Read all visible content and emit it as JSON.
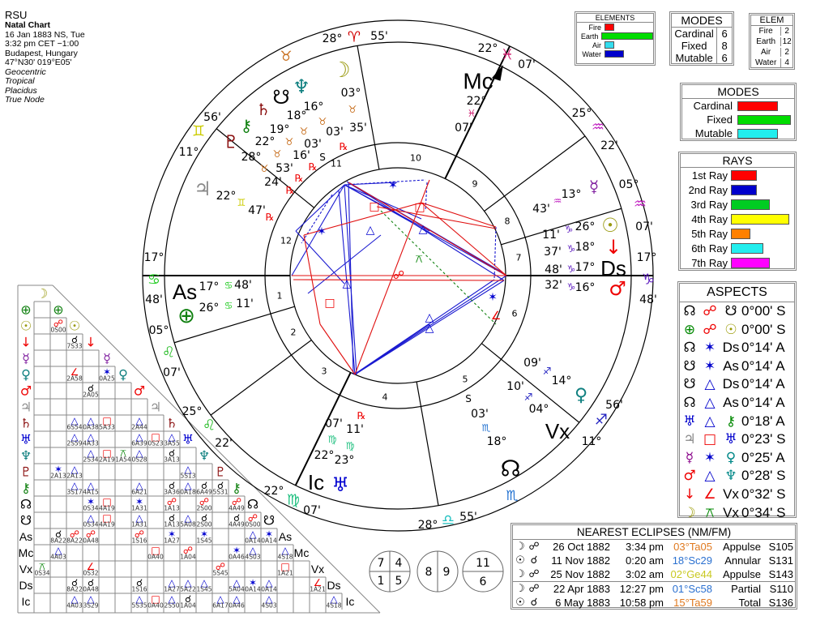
{
  "header": {
    "name": "RSU",
    "chart_type": "Natal Chart",
    "date": "16 Jan 1883 NS, Tue",
    "time": "3:32 pm  CET −1:00",
    "place": "Budapest, Hungary",
    "coords": "47°N30' 019°E05'",
    "settings": [
      "Geocentric",
      "Tropical",
      "Placidus",
      "True Node"
    ]
  },
  "elements_box": {
    "title": "ELEMENTS",
    "rows": [
      {
        "label": "Fire",
        "value": 2,
        "color": "#ff0000"
      },
      {
        "label": "Earth",
        "value": 12,
        "color": "#00dd00"
      },
      {
        "label": "Air",
        "value": 2,
        "color": "#33ddee"
      },
      {
        "label": "Water",
        "value": 4,
        "color": "#0000cc"
      }
    ]
  },
  "modes_table": {
    "title": "MODES",
    "rows": [
      {
        "label": "Cardinal",
        "value": "6"
      },
      {
        "label": "Fixed",
        "value": "8"
      },
      {
        "label": "Mutable",
        "value": "6"
      }
    ]
  },
  "elem_table": {
    "title": "ELEM",
    "rows": [
      {
        "label": "Fire",
        "value": "2"
      },
      {
        "label": "Earth",
        "value": "12"
      },
      {
        "label": "Air",
        "value": "2"
      },
      {
        "label": "Water",
        "value": "4"
      }
    ]
  },
  "modes_bars": {
    "title": "MODES",
    "rows": [
      {
        "label": "Cardinal",
        "value": 6,
        "color": "#ff0000"
      },
      {
        "label": "Fixed",
        "value": 8,
        "color": "#00dd00"
      },
      {
        "label": "Mutable",
        "value": 6,
        "color": "#22eeee"
      }
    ]
  },
  "rays": {
    "title": "RAYS",
    "rows": [
      {
        "label": "1st Ray",
        "value": 4,
        "color": "#ff0000"
      },
      {
        "label": "2nd Ray",
        "value": 4,
        "color": "#0000cc"
      },
      {
        "label": "3rd Ray",
        "value": 6,
        "color": "#00cc22"
      },
      {
        "label": "4th Ray",
        "value": 9,
        "color": "#ffff00"
      },
      {
        "label": "5th Ray",
        "value": 3,
        "color": "#ff8000"
      },
      {
        "label": "6th Ray",
        "value": 5,
        "color": "#22eeee"
      },
      {
        "label": "7th Ray",
        "value": 6,
        "color": "#ff00ff"
      }
    ]
  },
  "aspects": {
    "title": "ASPECTS",
    "rows": [
      {
        "p1": "☊",
        "c1": "#000",
        "a": "☍",
        "ca": "#e00",
        "p2": "☋",
        "c2": "#000",
        "orb": "0°00' S"
      },
      {
        "p1": "⊕",
        "c1": "#080",
        "a": "☍",
        "ca": "#e00",
        "p2": "☉",
        "c2": "#990",
        "orb": "0°00' S"
      },
      {
        "p1": "☊",
        "c1": "#000",
        "a": "✶",
        "ca": "#00c",
        "p2": "Ds",
        "c2": "#000",
        "orb": "0°14' A"
      },
      {
        "p1": "☋",
        "c1": "#000",
        "a": "✶",
        "ca": "#00c",
        "p2": "As",
        "c2": "#000",
        "orb": "0°14' A"
      },
      {
        "p1": "☋",
        "c1": "#000",
        "a": "△",
        "ca": "#00c",
        "p2": "Ds",
        "c2": "#000",
        "orb": "0°14' A"
      },
      {
        "p1": "☊",
        "c1": "#000",
        "a": "△",
        "ca": "#00c",
        "p2": "As",
        "c2": "#000",
        "orb": "0°14' A"
      },
      {
        "p1": "♅",
        "c1": "#00c",
        "a": "△",
        "ca": "#00c",
        "p2": "⚷",
        "c2": "#080",
        "orb": "0°18' A"
      },
      {
        "p1": "♃",
        "c1": "#888",
        "a": "□",
        "ca": "#e00",
        "p2": "♅",
        "c2": "#00c",
        "orb": "0°23' S"
      },
      {
        "p1": "☿",
        "c1": "#808",
        "a": "✶",
        "ca": "#00c",
        "p2": "♀",
        "c2": "#088",
        "orb": "0°25' A"
      },
      {
        "p1": "♂",
        "c1": "#e00",
        "a": "△",
        "ca": "#00c",
        "p2": "♆",
        "c2": "#088",
        "orb": "0°28' S"
      },
      {
        "p1": "↓",
        "c1": "#e00",
        "a": "∠",
        "ca": "#e00",
        "p2": "Vx",
        "c2": "#000",
        "orb": "0°32' S"
      },
      {
        "p1": "☽",
        "c1": "#990",
        "a": "⚻",
        "ca": "#080",
        "p2": "Vx",
        "c2": "#000",
        "orb": "0°34' S"
      }
    ]
  },
  "eclipses": {
    "title": "NEAREST ECLIPSES (NM/FM)",
    "rows": [
      {
        "body": "☽",
        "node": "☍",
        "date": "26 Oct 1882",
        "time": "3:34 pm",
        "pos": "03°Ta05",
        "pos_color": "#e07a20",
        "kind": "Appulse",
        "saros": "S105"
      },
      {
        "body": "☉",
        "node": "☌",
        "date": "11 Nov 1882",
        "time": "0:20 am",
        "pos": "18°Sc29",
        "pos_color": "#2a70d0",
        "kind": "Annular",
        "saros": "S131"
      },
      {
        "body": "☽",
        "node": "☍",
        "date": "25 Nov 1882",
        "time": "3:02 am",
        "pos": "02°Ge44",
        "pos_color": "#c8c820",
        "kind": "Appulse",
        "saros": "S143"
      },
      {
        "body": "☽",
        "node": "☍",
        "date": "22 Apr 1883",
        "time": "12:27 pm",
        "pos": "01°Sc58",
        "pos_color": "#2a70d0",
        "kind": "Partial",
        "saros": "S110"
      },
      {
        "body": "☉",
        "node": "☌",
        "date": "6 May 1883",
        "time": "10:58 pm",
        "pos": "15°Ta59",
        "pos_color": "#e07a20",
        "kind": "Total",
        "saros": "S136"
      }
    ]
  },
  "house_circles": [
    [
      "7",
      "4",
      "1",
      "5"
    ],
    [
      "8",
      "9"
    ],
    [
      "11",
      "6"
    ]
  ],
  "wheel": {
    "house_numbers": [
      "1",
      "2",
      "3",
      "4",
      "5",
      "6",
      "7",
      "8",
      "9",
      "10",
      "11",
      "12"
    ],
    "cusps": [
      {
        "house": "11",
        "deg": "28°",
        "sign": "♈",
        "min": "55'",
        "color": "#d00000"
      },
      {
        "house": "10",
        "deg": "22°",
        "sign": "♓",
        "min": "07'",
        "color": "#d02070"
      },
      {
        "house": "9",
        "deg": "25°",
        "sign": "♒",
        "min": "22'",
        "color": "#c020c0"
      },
      {
        "house": "8",
        "deg": "05°",
        "sign": "♒",
        "min": "07'",
        "color": "#c020c0"
      },
      {
        "house": "7",
        "deg": "17°",
        "sign": "♑",
        "min": "48'",
        "color": "#6020c0"
      },
      {
        "house": "6",
        "deg": "11°",
        "sign": "♐",
        "min": "56'",
        "color": "#2020c0"
      },
      {
        "house": "5",
        "deg": "28°",
        "sign": "♎",
        "min": "55'",
        "color": "#20c0c0"
      },
      {
        "house": "4",
        "deg": "22°",
        "sign": "♍",
        "min": "07'",
        "color": "#20c080"
      },
      {
        "house": "3",
        "deg": "25°",
        "sign": "♌",
        "min": "22'",
        "color": "#22bb22"
      },
      {
        "house": "2",
        "deg": "05°",
        "sign": "♌",
        "min": "07'",
        "color": "#22bb22"
      },
      {
        "house": "1",
        "deg": "17°",
        "sign": "♋",
        "min": "48'",
        "color": "#22cc22"
      },
      {
        "house": "12",
        "deg": "11°",
        "sign": "♊",
        "min": "56'",
        "color": "#cccc00"
      }
    ],
    "intercepted": [
      {
        "sign": "♉",
        "color": "#c87020"
      },
      {
        "sign": "♏",
        "color": "#2070d0"
      }
    ],
    "points": [
      {
        "id": "moon",
        "glyph": "☽",
        "color": "#9a9a10",
        "deg": "03°",
        "sign": "♉",
        "sc": "#c87020",
        "min": "35'",
        "flag": ""
      },
      {
        "id": "neptune",
        "glyph": "♆",
        "color": "#108080",
        "deg": "16°",
        "sign": "♉",
        "sc": "#c87020",
        "min": "03'",
        "flag": "℞"
      },
      {
        "id": "south-node",
        "glyph": "☋",
        "color": "#000",
        "deg": "18°",
        "sign": "♉",
        "sc": "#c87020",
        "min": "03'",
        "flag": "S"
      },
      {
        "id": "saturn",
        "glyph": "♄",
        "color": "#8b1010",
        "deg": "19°",
        "sign": "♉",
        "sc": "#c87020",
        "min": "16'",
        "flag": "℞"
      },
      {
        "id": "chiron",
        "glyph": "⚷",
        "color": "#108010",
        "deg": "22°",
        "sign": "♉",
        "sc": "#c87020",
        "min": "53'",
        "flag": "℞"
      },
      {
        "id": "pluto",
        "glyph": "♇",
        "color": "#8b1010",
        "deg": "28°",
        "sign": "♉",
        "sc": "#c87020",
        "min": "24'",
        "flag": "℞"
      },
      {
        "id": "jupiter",
        "glyph": "♃",
        "color": "#888",
        "deg": "22°",
        "sign": "♊",
        "sc": "#cccc00",
        "min": "47'",
        "flag": "℞"
      },
      {
        "id": "mercury",
        "glyph": "☿",
        "color": "#8020a0",
        "deg": "13°",
        "sign": "♒",
        "sc": "#c020c0",
        "min": "43'",
        "flag": ""
      },
      {
        "id": "sun",
        "glyph": "☉",
        "color": "#9a9a10",
        "deg": "26°",
        "sign": "♑",
        "sc": "#6020c0",
        "min": "11'",
        "flag": ""
      },
      {
        "id": "vulcan",
        "glyph": "↓",
        "color": "#e00",
        "deg": "18°",
        "sign": "♑",
        "sc": "#6020c0",
        "min": "37'",
        "flag": ""
      },
      {
        "id": "descendant",
        "glyph": "Ds",
        "color": "#000",
        "deg": "17°",
        "sign": "♑",
        "sc": "#6020c0",
        "min": "48'",
        "flag": ""
      },
      {
        "id": "mars",
        "glyph": "♂",
        "color": "#e00",
        "deg": "16°",
        "sign": "♑",
        "sc": "#6020c0",
        "min": "32'",
        "flag": ""
      },
      {
        "id": "venus",
        "glyph": "♀",
        "color": "#108080",
        "deg": "14°",
        "sign": "♐",
        "sc": "#2020c0",
        "min": "09'",
        "flag": ""
      },
      {
        "id": "vertex",
        "glyph": "Vx",
        "color": "#000",
        "deg": "04°",
        "sign": "♐",
        "sc": "#2020c0",
        "min": "10'",
        "flag": ""
      },
      {
        "id": "north-node",
        "glyph": "☊",
        "color": "#000",
        "deg": "18°",
        "sign": "♏",
        "sc": "#2070d0",
        "min": "03'",
        "flag": "S"
      },
      {
        "id": "uranus",
        "glyph": "♅",
        "color": "#0000d0",
        "deg": "23°",
        "sign": "♍",
        "sc": "#20c080",
        "min": "11'",
        "flag": "℞"
      },
      {
        "id": "imum-coeli",
        "glyph": "Ic",
        "color": "#000",
        "deg": "22°",
        "sign": "♍",
        "sc": "#20c080",
        "min": "07'",
        "flag": ""
      },
      {
        "id": "earth",
        "glyph": "⊕",
        "color": "#108010",
        "deg": "26°",
        "sign": "♋",
        "sc": "#22cc22",
        "min": "11'",
        "flag": ""
      },
      {
        "id": "ascendant",
        "glyph": "As",
        "color": "#000",
        "deg": "17°",
        "sign": "♋",
        "sc": "#22cc22",
        "min": "48'",
        "flag": ""
      },
      {
        "id": "midheaven",
        "glyph": "Mc",
        "color": "#000",
        "deg": "22°",
        "sign": "♓",
        "sc": "#d02070",
        "min": "07'",
        "flag": ""
      }
    ]
  },
  "grid": {
    "top_label": {
      "glyph": "☽",
      "color": "#9a9a10"
    },
    "rows": [
      {
        "glyph": "⊕",
        "color": "#108010"
      },
      {
        "glyph": "☉",
        "color": "#9a9a10"
      },
      {
        "glyph": "↓",
        "color": "#e00"
      },
      {
        "glyph": "☿",
        "color": "#8020a0"
      },
      {
        "glyph": "♀",
        "color": "#108080"
      },
      {
        "glyph": "♂",
        "color": "#e00"
      },
      {
        "glyph": "♃",
        "color": "#888"
      },
      {
        "glyph": "♄",
        "color": "#8b1010"
      },
      {
        "glyph": "♅",
        "color": "#0000d0"
      },
      {
        "glyph": "♆",
        "color": "#108080"
      },
      {
        "glyph": "♇",
        "color": "#8b1010"
      },
      {
        "glyph": "⚷",
        "color": "#108010"
      },
      {
        "glyph": "☊",
        "color": "#000"
      },
      {
        "glyph": "☋",
        "color": "#000"
      },
      {
        "glyph": "As",
        "color": "#000"
      },
      {
        "glyph": "Mc",
        "color": "#000"
      },
      {
        "glyph": "Vx",
        "color": "#000"
      },
      {
        "glyph": "Ds",
        "color": "#000"
      },
      {
        "glyph": "Ic",
        "color": "#000"
      }
    ],
    "cells": [
      [
        1,
        1,
        "opp",
        "0S00"
      ],
      [
        2,
        2,
        "con",
        "7S33"
      ],
      [
        4,
        2,
        "ssq",
        "2A58"
      ],
      [
        4,
        4,
        "sex",
        "0A25"
      ],
      [
        5,
        3,
        "con",
        "2A05"
      ],
      [
        7,
        2,
        "tri",
        "6S54"
      ],
      [
        7,
        3,
        "tri",
        "0A38"
      ],
      [
        7,
        4,
        "sqr",
        "5A33"
      ],
      [
        7,
        6,
        "tri",
        "2A44"
      ],
      [
        8,
        2,
        "tri",
        "2S59"
      ],
      [
        8,
        3,
        "tri",
        "4A33"
      ],
      [
        8,
        6,
        "tri",
        "6A39"
      ],
      [
        8,
        7,
        "sqr",
        "0S23"
      ],
      [
        8,
        8,
        "tri",
        "3A55"
      ],
      [
        9,
        3,
        "tri",
        "2S34"
      ],
      [
        9,
        4,
        "sqr",
        "2A19"
      ],
      [
        9,
        5,
        "qcx",
        "1A54"
      ],
      [
        9,
        6,
        "tri",
        "0S28"
      ],
      [
        9,
        8,
        "con",
        "3A13"
      ],
      [
        10,
        1,
        "sex",
        "2A13"
      ],
      [
        10,
        2,
        "tri",
        "2A13"
      ],
      [
        10,
        9,
        "tri",
        "5S13"
      ],
      [
        11,
        2,
        "tri",
        "3S17"
      ],
      [
        11,
        3,
        "tri",
        "4A15"
      ],
      [
        11,
        6,
        "tri",
        "6A21"
      ],
      [
        11,
        8,
        "con",
        "3A36"
      ],
      [
        11,
        9,
        "tri",
        "0A18"
      ],
      [
        11,
        10,
        "con",
        "6A49"
      ],
      [
        11,
        11,
        "con",
        "5S31"
      ],
      [
        12,
        3,
        "sex",
        "0S34"
      ],
      [
        12,
        4,
        "sqr",
        "4A19"
      ],
      [
        12,
        6,
        "sex",
        "1A31"
      ],
      [
        12,
        8,
        "opp",
        "1A13"
      ],
      [
        12,
        10,
        "opp",
        "2S00"
      ],
      [
        12,
        12,
        "opp",
        "4A49"
      ],
      [
        13,
        3,
        "tri",
        "0S34"
      ],
      [
        13,
        4,
        "sqr",
        "4A19"
      ],
      [
        13,
        6,
        "tri",
        "1A31"
      ],
      [
        13,
        8,
        "con",
        "1A13"
      ],
      [
        13,
        9,
        "tri",
        "5A08"
      ],
      [
        13,
        10,
        "con",
        "2S00"
      ],
      [
        13,
        12,
        "con",
        "4A49"
      ],
      [
        13,
        13,
        "opp",
        "0S00"
      ],
      [
        14,
        1,
        "con",
        "8A22"
      ],
      [
        14,
        2,
        "opp",
        "8A22"
      ],
      [
        14,
        3,
        "opp",
        "0A48"
      ],
      [
        14,
        6,
        "opp",
        "1S16"
      ],
      [
        14,
        8,
        "sex",
        "1A27"
      ],
      [
        14,
        10,
        "sex",
        "1S45"
      ],
      [
        14,
        13,
        "tri",
        "0A14"
      ],
      [
        14,
        14,
        "sex",
        "0A14"
      ],
      [
        15,
        1,
        "tri",
        "4A03"
      ],
      [
        15,
        7,
        "sqr",
        "0A40"
      ],
      [
        15,
        9,
        "opp",
        "1A04"
      ],
      [
        15,
        12,
        "sex",
        "0A46"
      ],
      [
        15,
        13,
        "tri",
        "4S03"
      ],
      [
        15,
        15,
        "tri",
        "4S18"
      ],
      [
        16,
        0,
        "qcx",
        "0S34"
      ],
      [
        16,
        3,
        "ssq",
        "0S32"
      ],
      [
        16,
        11,
        "opp",
        "5S45"
      ],
      [
        16,
        15,
        "sqr",
        "1A21"
      ],
      [
        17,
        2,
        "con",
        "8A22"
      ],
      [
        17,
        3,
        "con",
        "0A48"
      ],
      [
        17,
        6,
        "con",
        "1S16"
      ],
      [
        17,
        8,
        "tri",
        "1A27"
      ],
      [
        17,
        9,
        "tri",
        "5A22"
      ],
      [
        17,
        10,
        "tri",
        "1S45"
      ],
      [
        17,
        12,
        "tri",
        "5A04"
      ],
      [
        17,
        13,
        "sex",
        "0A14"
      ],
      [
        17,
        14,
        "tri",
        "0A14"
      ],
      [
        17,
        17,
        "ssq",
        "1A21"
      ],
      [
        18,
        2,
        "tri",
        "4A03"
      ],
      [
        18,
        3,
        "tri",
        "3S29"
      ],
      [
        18,
        6,
        "tri",
        "5S35"
      ],
      [
        18,
        7,
        "sqr",
        "0A40"
      ],
      [
        18,
        8,
        "tri",
        "2S50"
      ],
      [
        18,
        9,
        "con",
        "1A04"
      ],
      [
        18,
        11,
        "tri",
        "6A17"
      ],
      [
        18,
        12,
        "tri",
        "0A46"
      ],
      [
        18,
        14,
        "tri",
        "4S03"
      ],
      [
        18,
        18,
        "tri",
        "4S18"
      ]
    ],
    "aspect_glyphs": {
      "con": {
        "glyph": "☌",
        "color": "#000"
      },
      "opp": {
        "glyph": "☍",
        "color": "#e00"
      },
      "tri": {
        "glyph": "△",
        "color": "#0000d0"
      },
      "sqr": {
        "glyph": "□",
        "color": "#e00"
      },
      "sex": {
        "glyph": "✶",
        "color": "#0000d0"
      },
      "qcx": {
        "glyph": "⚻",
        "color": "#008000"
      },
      "ssq": {
        "glyph": "∠",
        "color": "#e00"
      }
    }
  }
}
